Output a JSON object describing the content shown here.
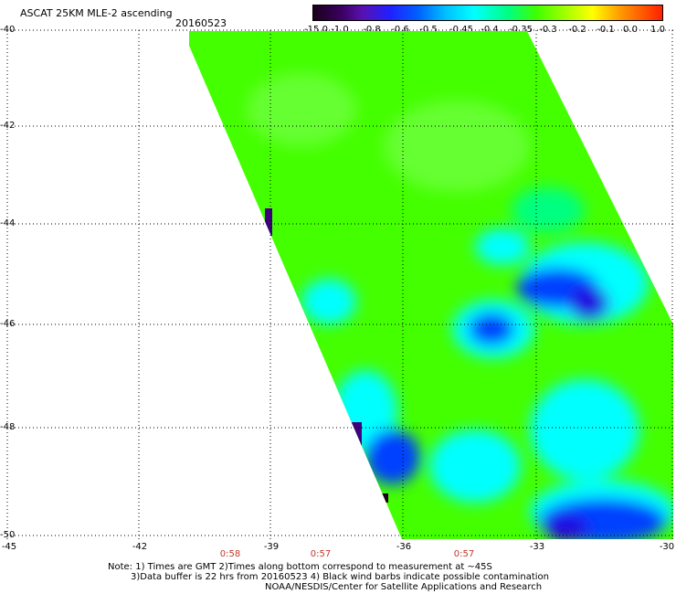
{
  "header": {
    "title": "ASCAT 25KM MLE-2 ascending",
    "date": "20160523"
  },
  "colorbar": {
    "labels": [
      "-15.0",
      "-1.0",
      "-0.8",
      "-0.6",
      "-0.5",
      "-0.45",
      "-0.4",
      "-0.35",
      "-0.3",
      "-0.2",
      "-0.1",
      "0.0",
      "1.0"
    ],
    "colors": [
      "#1a001a",
      "#3a0060",
      "#5a10b0",
      "#2020ff",
      "#0060ff",
      "#00c0ff",
      "#00ffff",
      "#00ff80",
      "#40ff00",
      "#a0ff00",
      "#ffff00",
      "#ff9900",
      "#ff2000"
    ]
  },
  "map": {
    "lat_labels": [
      "-40",
      "-42",
      "-44",
      "-46",
      "-48",
      "-50"
    ],
    "lon_labels": [
      "-45",
      "-42",
      "-39",
      "-36",
      "-33",
      "-30"
    ],
    "time_labels": [
      "0:58",
      "0:57",
      "0:57"
    ],
    "swath_colors": {
      "green": "#44ff00",
      "light_green": "#66ff33",
      "cyan": "#00ffff",
      "blue": "#0040ff",
      "deep_blue": "#2000e0",
      "purple": "#400080"
    }
  },
  "notes": {
    "line1": "Note: 1) Times are GMT 2)Times along bottom correspond to measurement at ~45S",
    "line2": "3)Data buffer is 22 hrs from 20160523 4) Black wind barbs indicate possible contamination",
    "line3": "NOAA/NESDIS/Center for Satellite Applications and Research"
  }
}
